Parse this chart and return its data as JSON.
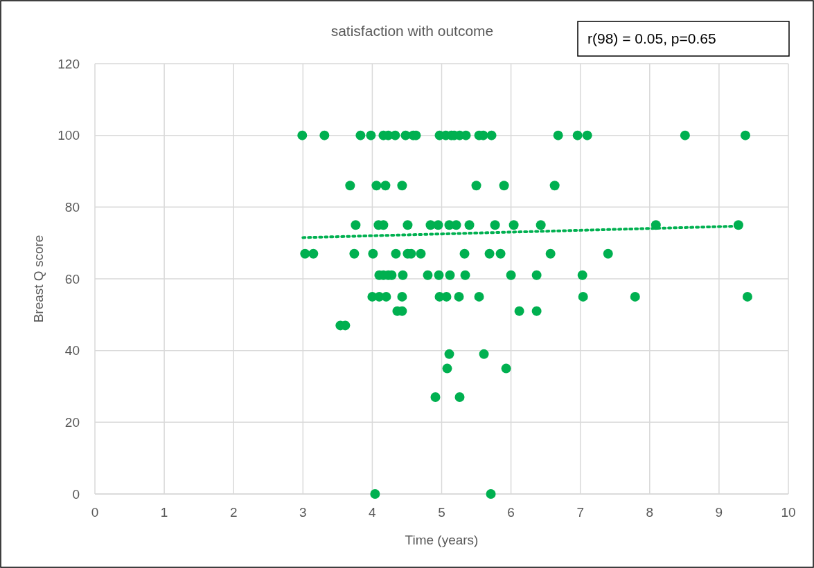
{
  "chart_data": {
    "type": "scatter",
    "title": "satisfaction with outcome",
    "xlabel": "Time (years)",
    "ylabel": "Breast Q score",
    "annotations": [
      "r(98) = 0.05, p=0.65"
    ],
    "xlim": [
      0,
      10
    ],
    "xticks": [
      0,
      1,
      2,
      3,
      4,
      5,
      6,
      7,
      8,
      9,
      10
    ],
    "ylim": [
      0,
      120
    ],
    "yticks": [
      0,
      20,
      40,
      60,
      80,
      100,
      120
    ],
    "grid": true,
    "marker": "circle",
    "series": [
      {
        "color": "#00b050",
        "x": [
          2.99,
          3.31,
          3.83,
          3.98,
          4.16,
          4.23,
          4.33,
          4.48,
          4.59,
          4.63,
          4.97,
          5.06,
          5.14,
          5.18,
          5.26,
          5.35,
          5.54,
          5.6,
          5.72,
          6.68,
          6.96,
          7.1,
          8.51,
          9.38,
          3.68,
          4.06,
          4.19,
          4.43,
          5.5,
          5.9,
          6.63,
          3.76,
          4.09,
          4.16,
          4.51,
          4.84,
          4.95,
          5.11,
          5.21,
          5.4,
          5.77,
          6.04,
          6.43,
          8.09,
          9.28,
          3.03,
          3.15,
          3.74,
          4.01,
          4.34,
          4.51,
          4.56,
          4.7,
          5.33,
          5.69,
          5.85,
          6.57,
          7.4,
          4.1,
          4.16,
          4.23,
          4.28,
          4.44,
          4.8,
          4.96,
          5.12,
          5.34,
          6.0,
          6.37,
          7.03,
          4.0,
          4.1,
          4.2,
          4.43,
          4.97,
          5.07,
          5.25,
          5.54,
          7.04,
          7.79,
          9.41,
          4.36,
          4.43,
          6.12,
          6.37,
          3.54,
          3.61,
          5.11,
          5.61,
          5.08,
          5.93,
          4.91,
          5.26,
          4.04,
          5.71
        ],
        "values": [
          100,
          100,
          100,
          100,
          100,
          100,
          100,
          100,
          100,
          100,
          100,
          100,
          100,
          100,
          100,
          100,
          100,
          100,
          100,
          100,
          100,
          100,
          100,
          100,
          86,
          86,
          86,
          86,
          86,
          86,
          86,
          75,
          75,
          75,
          75,
          75,
          75,
          75,
          75,
          75,
          75,
          75,
          75,
          75,
          75,
          67,
          67,
          67,
          67,
          67,
          67,
          67,
          67,
          67,
          67,
          67,
          67,
          67,
          61,
          61,
          61,
          61,
          61,
          61,
          61,
          61,
          61,
          61,
          61,
          61,
          55,
          55,
          55,
          55,
          55,
          55,
          55,
          55,
          55,
          55,
          55,
          51,
          51,
          51,
          51,
          47,
          47,
          39,
          39,
          35,
          35,
          27,
          27,
          0,
          0
        ]
      },
      {
        "type": "line",
        "color": "#00b050",
        "line_style": "dotted",
        "marker": "none",
        "x": [
          3,
          9.3
        ],
        "values": [
          71.5,
          74.7
        ]
      }
    ]
  }
}
